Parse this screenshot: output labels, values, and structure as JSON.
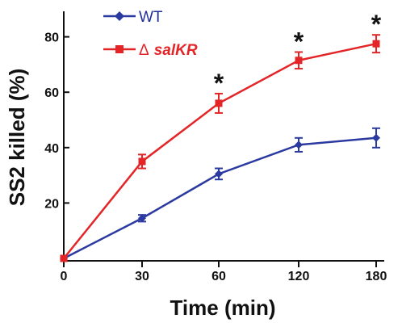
{
  "chart_data": {
    "type": "line",
    "x": [
      0,
      30,
      60,
      120,
      180
    ],
    "x_tick_labels": [
      "0",
      "30",
      "60",
      "120",
      "180"
    ],
    "y_ticks": [
      20,
      40,
      60,
      80
    ],
    "xlabel": "Time (min)",
    "ylabel": "SS2 killed (%)",
    "legend_position": "top-left",
    "series": [
      {
        "name": "WT",
        "color": "#2b3aa0",
        "marker": "diamond",
        "values": [
          0,
          14.5,
          30.5,
          41,
          43.5
        ],
        "errors": [
          0,
          1.2,
          2,
          2.5,
          3.5
        ]
      },
      {
        "name_symbol": "Δ",
        "name_italic": "salKR",
        "color": "#e32528",
        "marker": "square",
        "values": [
          0,
          35,
          56,
          71.5,
          77.5
        ],
        "errors": [
          0,
          2.5,
          3.5,
          3,
          3.2
        ]
      }
    ],
    "significance_markers": [
      "*",
      "*",
      "*"
    ],
    "significance_x": [
      60,
      120,
      180
    ]
  }
}
